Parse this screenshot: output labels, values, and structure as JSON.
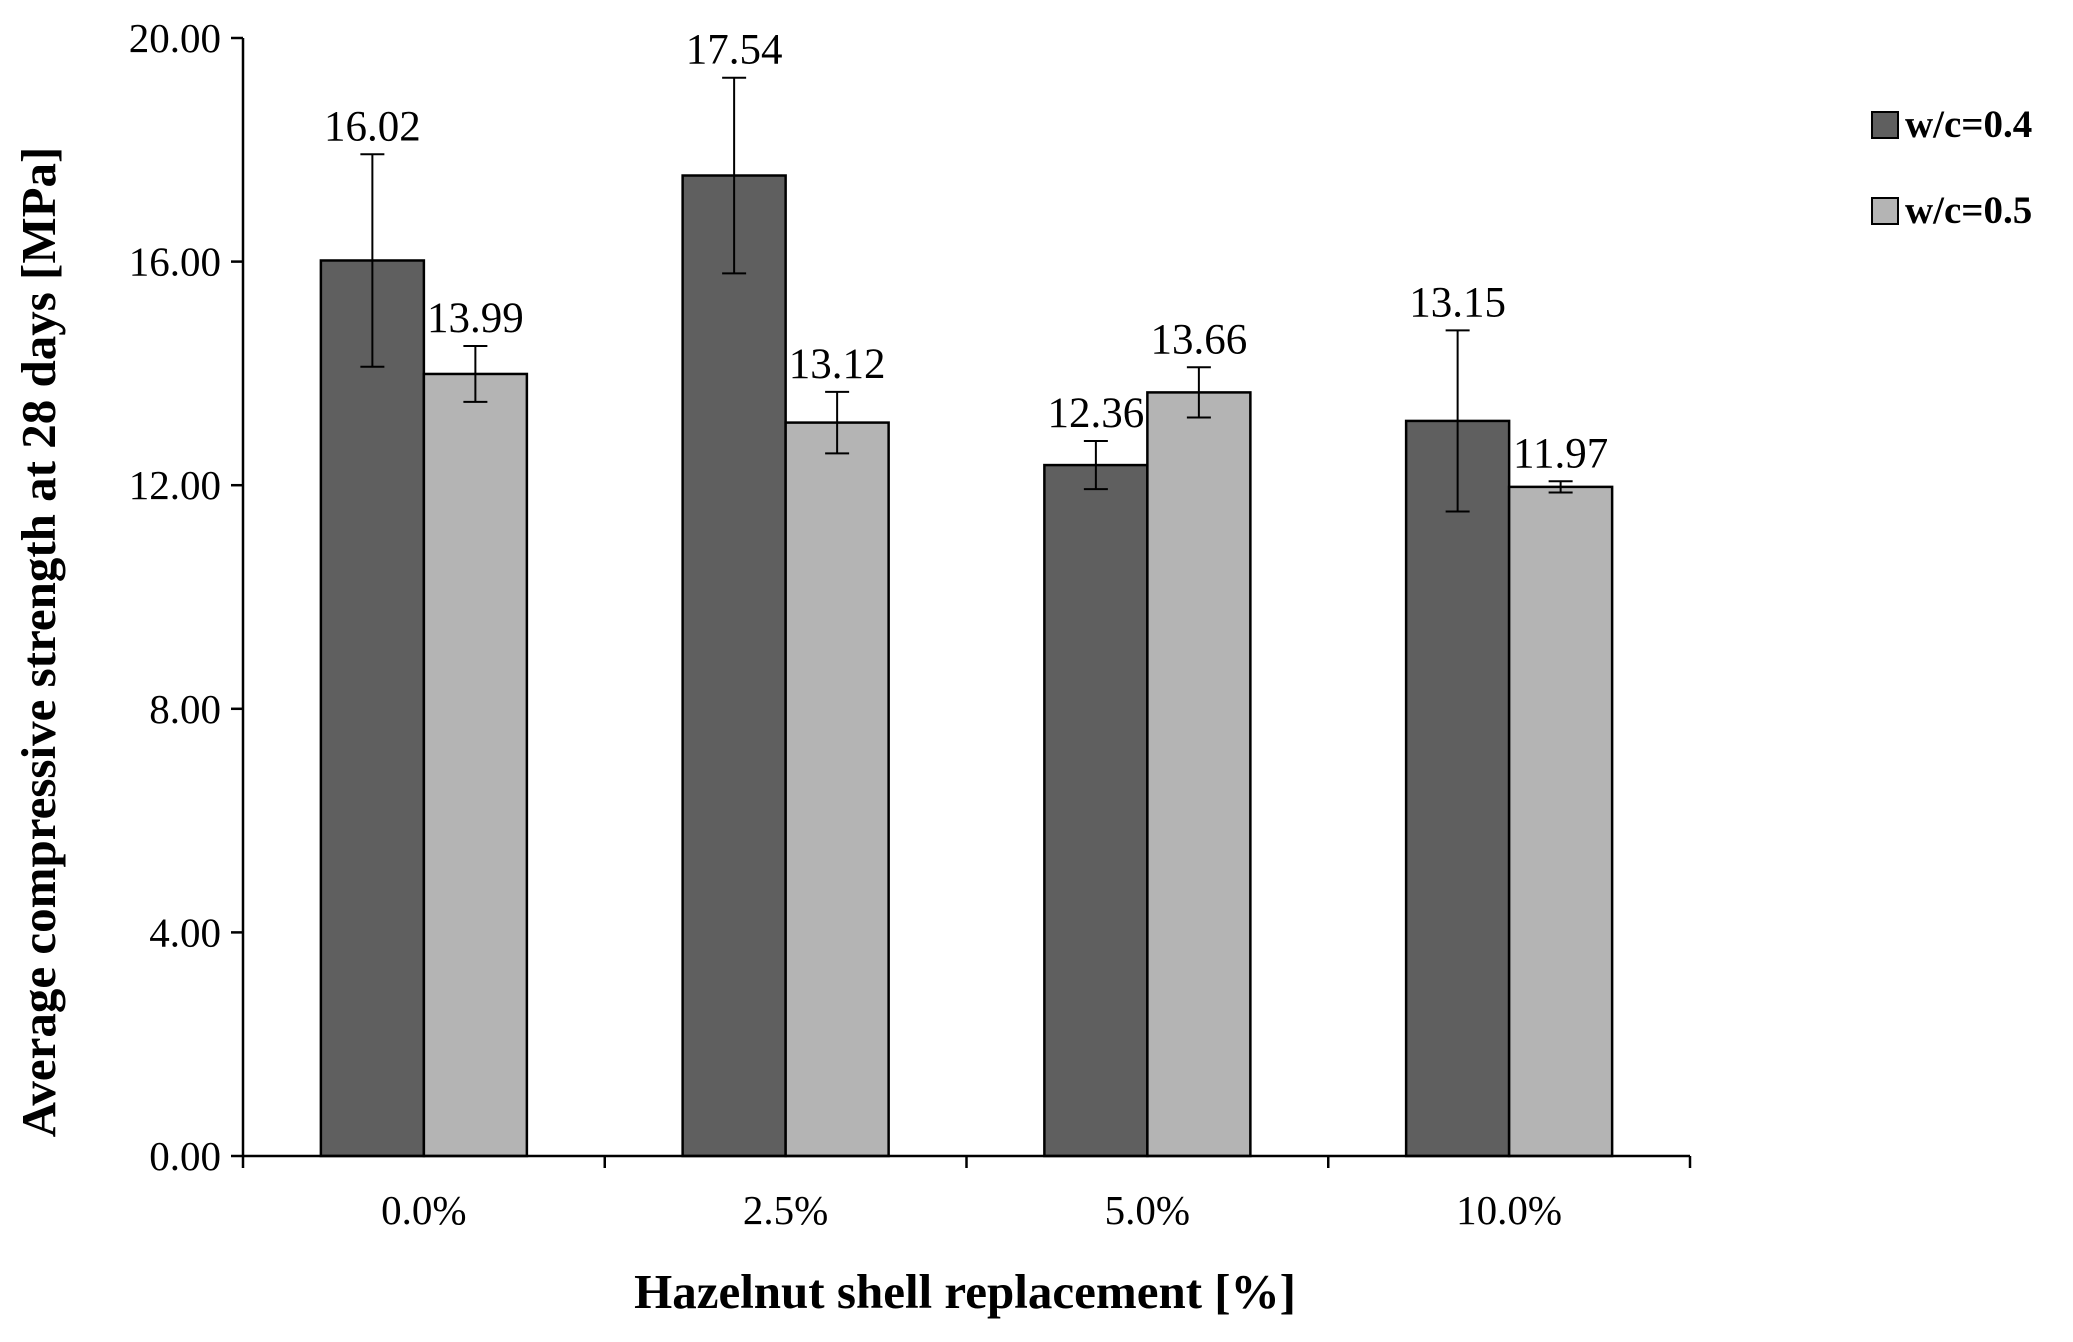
{
  "chart_data": {
    "type": "bar",
    "categories": [
      "0.0%",
      "2.5%",
      "5.0%",
      "10.0%"
    ],
    "series": [
      {
        "name": "w/c=0.4",
        "color": "#5f5f5f",
        "values": [
          16.02,
          17.54,
          12.36,
          13.15
        ],
        "labels": [
          "16.02",
          "17.54",
          "12.36",
          "13.15"
        ],
        "error": [
          1.9,
          1.75,
          0.43,
          1.62
        ]
      },
      {
        "name": "w/c=0.5",
        "color": "#b4b4b4",
        "values": [
          13.99,
          13.12,
          13.66,
          11.97
        ],
        "labels": [
          "13.99",
          "13.12",
          "13.66",
          "11.97"
        ],
        "error": [
          0.5,
          0.55,
          0.45,
          0.1
        ]
      }
    ],
    "xlabel": "Hazelnut shell replacement [%]",
    "ylabel": "Average compressive strength at 28 days [MPa]",
    "ylim": [
      0,
      20
    ],
    "yticks": [
      "0.00",
      "4.00",
      "8.00",
      "12.00",
      "16.00",
      "20.00"
    ],
    "grid": false,
    "legend": "top-right"
  }
}
